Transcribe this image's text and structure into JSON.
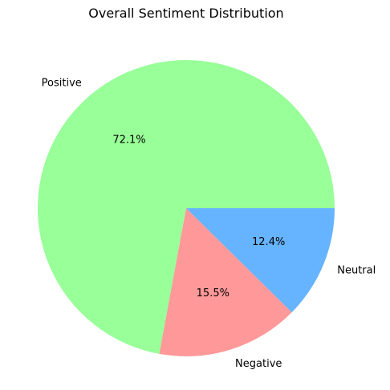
{
  "chart_data": {
    "type": "pie",
    "title": "Overall Sentiment Distribution",
    "slices": [
      {
        "label": "Positive",
        "value": 72.1,
        "pct_label": "72.1%",
        "color": "#99ff99"
      },
      {
        "label": "Negative",
        "value": 15.5,
        "pct_label": "15.5%",
        "color": "#ff9999"
      },
      {
        "label": "Neutral",
        "value": 12.4,
        "pct_label": "12.4%",
        "color": "#66b3ff"
      }
    ],
    "start_angle_deg": 0,
    "direction": "counterclockwise",
    "legend": "none"
  }
}
